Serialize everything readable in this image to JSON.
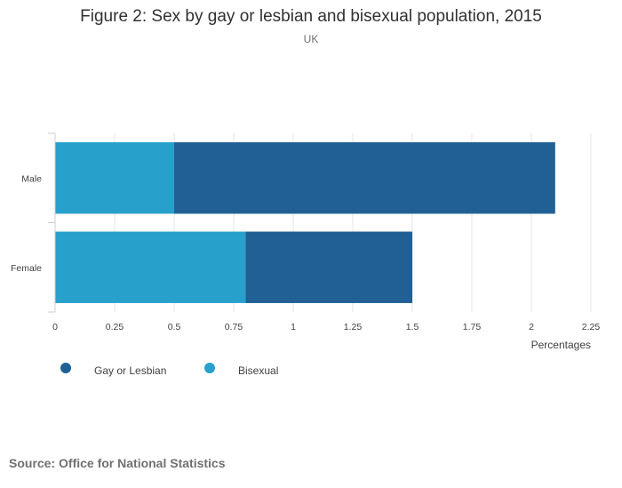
{
  "title": "Figure 2: Sex by gay or lesbian and bisexual population, 2015",
  "subtitle": "UK",
  "source": "Source: Office for National Statistics",
  "colors": {
    "gay_or_lesbian": "#206095",
    "bisexual": "#27a0cc"
  },
  "chart_data": {
    "type": "bar",
    "orientation": "horizontal",
    "stacked": true,
    "categories": [
      "Male",
      "Female"
    ],
    "series": [
      {
        "name": "Bisexual",
        "values": [
          0.5,
          0.8
        ],
        "color": "#27a0cc"
      },
      {
        "name": "Gay or Lesbian",
        "values": [
          1.6,
          0.7
        ],
        "color": "#206095"
      }
    ],
    "xlabel": "Percentages",
    "ylabel": "",
    "xlim": [
      0,
      2.25
    ],
    "xticks": [
      "0",
      "0.25",
      "0.5",
      "0.75",
      "1",
      "1.25",
      "1.5",
      "1.75",
      "2",
      "2.25"
    ],
    "grid": true,
    "legend": {
      "position": "bottom-left",
      "entries": [
        {
          "name": "Gay or Lesbian",
          "color": "#206095"
        },
        {
          "name": "Bisexual",
          "color": "#27a0cc"
        }
      ]
    }
  }
}
